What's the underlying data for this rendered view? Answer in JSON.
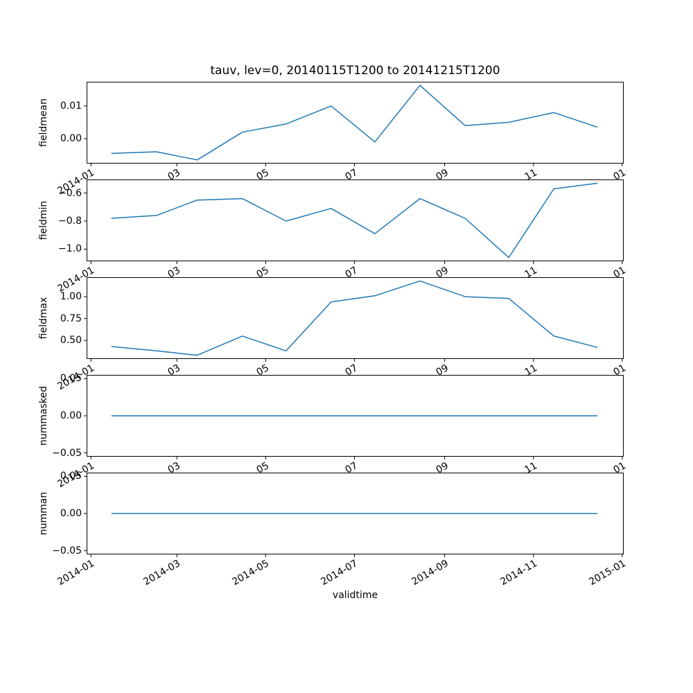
{
  "title": "tauv, lev=0, 20140115T1200 to 20141215T1200",
  "xlabel": "validtime",
  "line_color": "#1f77b4",
  "x_axis": {
    "xlim": [
      -3,
      366
    ],
    "tick_positions": [
      0,
      59,
      120,
      181,
      243,
      304,
      365
    ],
    "inner_tick_labels": [
      "2014-01",
      "03",
      "05",
      "07",
      "09",
      "11",
      "01"
    ],
    "bottom_tick_labels": [
      "2014-01",
      "2014-03",
      "2014-05",
      "2014-07",
      "2014-09",
      "2014-11",
      "2015-01"
    ]
  },
  "chart_data": [
    {
      "type": "line",
      "name": "fieldmean",
      "ylabel": "fieldmean",
      "x": [
        14,
        45,
        73,
        104,
        134,
        165,
        195,
        226,
        257,
        287,
        318,
        348
      ],
      "values": [
        -0.0045,
        -0.004,
        -0.0065,
        0.002,
        0.0045,
        0.01,
        -0.001,
        0.0163,
        0.004,
        0.005,
        0.008,
        0.0035
      ],
      "ylim": [
        -0.0076,
        0.0174
      ],
      "yticks": [
        {
          "value": 0.01,
          "label": "0.01"
        },
        {
          "value": 0.0,
          "label": "0.00"
        }
      ]
    },
    {
      "type": "line",
      "name": "fieldmin",
      "ylabel": "fieldmin",
      "x": [
        14,
        45,
        73,
        104,
        134,
        165,
        195,
        226,
        257,
        287,
        318,
        348
      ],
      "values": [
        -0.78,
        -0.76,
        -0.65,
        -0.64,
        -0.8,
        -0.71,
        -0.89,
        -0.64,
        -0.78,
        -1.06,
        -0.57,
        -0.53
      ],
      "ylim": [
        -1.0865,
        -0.5035
      ],
      "yticks": [
        {
          "value": -0.6,
          "label": "−0.6"
        },
        {
          "value": -0.8,
          "label": "−0.8"
        },
        {
          "value": -1.0,
          "label": "−1.0"
        }
      ]
    },
    {
      "type": "line",
      "name": "fieldmax",
      "ylabel": "fieldmax",
      "x": [
        14,
        45,
        73,
        104,
        134,
        165,
        195,
        226,
        257,
        287,
        318,
        348
      ],
      "values": [
        0.43,
        0.38,
        0.33,
        0.55,
        0.38,
        0.94,
        1.01,
        1.18,
        1.0,
        0.98,
        0.55,
        0.42
      ],
      "ylim": [
        0.2875,
        1.2225
      ],
      "yticks": [
        {
          "value": 1.0,
          "label": "1.00"
        },
        {
          "value": 0.75,
          "label": "0.75"
        },
        {
          "value": 0.5,
          "label": "0.50"
        }
      ]
    },
    {
      "type": "line",
      "name": "nummasked",
      "ylabel": "nummasked",
      "x": [
        14,
        45,
        73,
        104,
        134,
        165,
        195,
        226,
        257,
        287,
        318,
        348
      ],
      "values": [
        0,
        0,
        0,
        0,
        0,
        0,
        0,
        0,
        0,
        0,
        0,
        0
      ],
      "ylim": [
        -0.055,
        0.055
      ],
      "yticks": [
        {
          "value": 0.05,
          "label": "0.05"
        },
        {
          "value": 0.0,
          "label": "0.00"
        },
        {
          "value": -0.05,
          "label": "−0.05"
        }
      ]
    },
    {
      "type": "line",
      "name": "numman",
      "ylabel": "numman",
      "x": [
        14,
        45,
        73,
        104,
        134,
        165,
        195,
        226,
        257,
        287,
        318,
        348
      ],
      "values": [
        0,
        0,
        0,
        0,
        0,
        0,
        0,
        0,
        0,
        0,
        0,
        0
      ],
      "ylim": [
        -0.055,
        0.055
      ],
      "yticks": [
        {
          "value": 0.05,
          "label": "0.05"
        },
        {
          "value": 0.0,
          "label": "0.00"
        },
        {
          "value": -0.05,
          "label": "−0.05"
        }
      ]
    }
  ]
}
